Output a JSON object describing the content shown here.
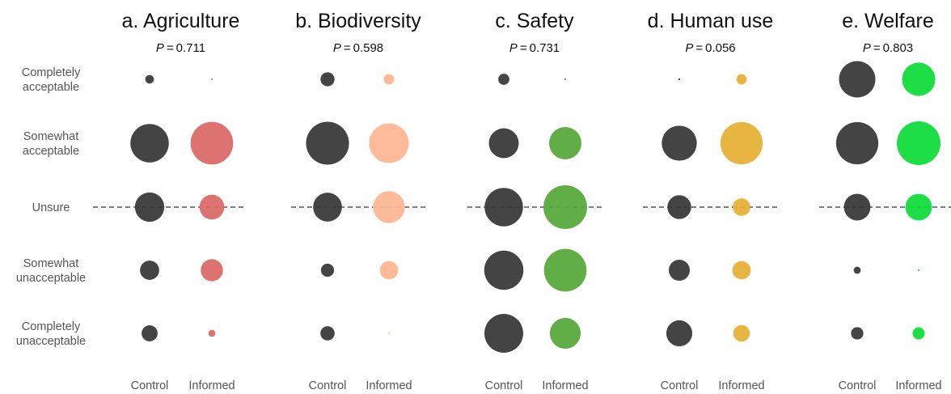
{
  "chart_data": {
    "type": "bubble",
    "rows": [
      [
        "Completely",
        "acceptable"
      ],
      [
        "Somewhat",
        "acceptable"
      ],
      [
        "Unsure"
      ],
      [
        "Somewhat",
        "unacceptable"
      ],
      [
        "Completely",
        "unacceptable"
      ]
    ],
    "groups": [
      "Control",
      "Informed"
    ],
    "reference_row": "Unsure",
    "size_unit": "relative bubble area",
    "panels": [
      {
        "title": "a. Agriculture",
        "p_symbol": "P",
        "p_value": "0.711",
        "color": "#db6b69",
        "control": [
          12,
          240,
          140,
          60,
          42
        ],
        "informed": [
          0.5,
          295,
          100,
          80,
          8
        ]
      },
      {
        "title": "b. Biodiversity",
        "p_symbol": "P",
        "p_value": "0.598",
        "color": "#fdb793",
        "control": [
          32,
          300,
          135,
          28,
          33
        ],
        "informed": [
          18,
          255,
          165,
          55,
          0.5
        ]
      },
      {
        "title": "c. Safety",
        "p_symbol": "P",
        "p_value": "0.731",
        "color": "#5aaa3c",
        "control": [
          20,
          145,
          240,
          250,
          245
        ],
        "informed": [
          0.5,
          170,
          310,
          295,
          155
        ]
      },
      {
        "title": "d. Human use",
        "p_symbol": "P",
        "p_value": "0.056",
        "color": "#e8b138",
        "control": [
          0.5,
          200,
          92,
          72,
          110
        ],
        "informed": [
          17,
          290,
          50,
          55,
          45
        ]
      },
      {
        "title": "e. Welfare",
        "p_symbol": "P",
        "p_value": "0.803",
        "color": "#12dc3c",
        "control": [
          215,
          290,
          115,
          8,
          25
        ],
        "informed": [
          180,
          310,
          115,
          0.5,
          24
        ]
      }
    ]
  }
}
